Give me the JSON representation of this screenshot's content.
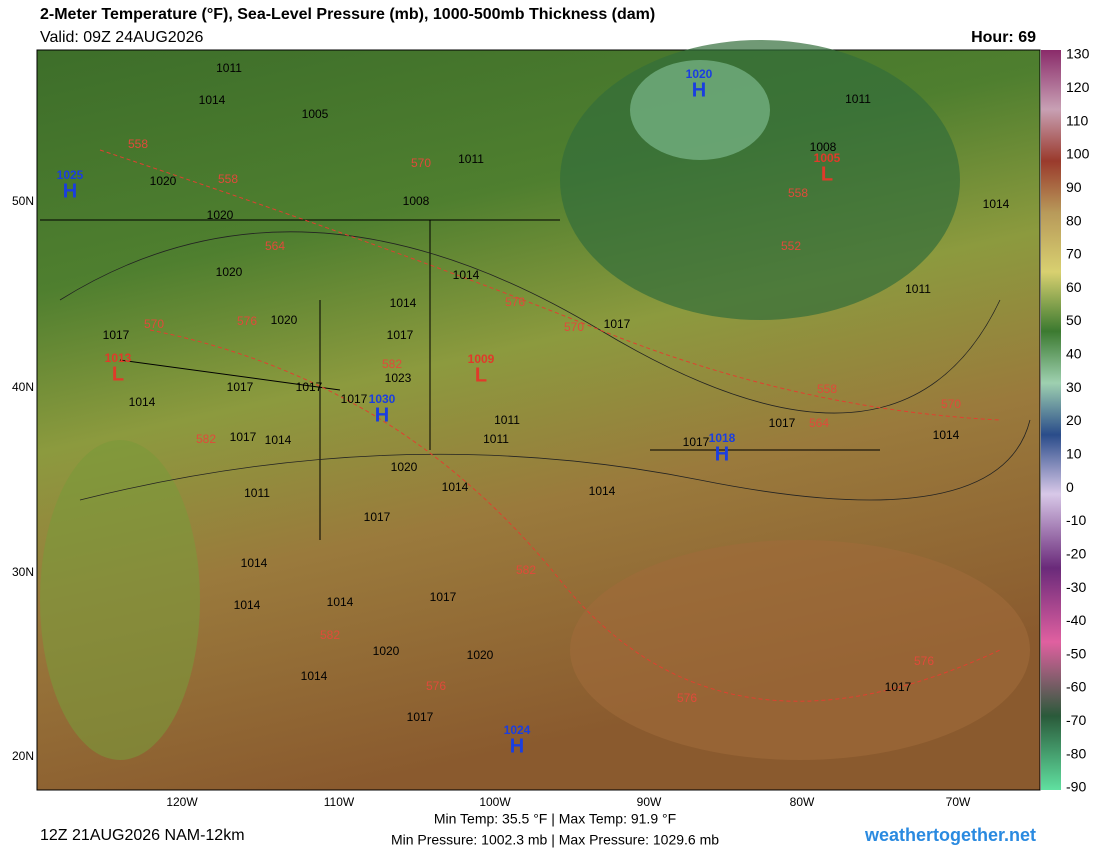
{
  "header": {
    "title": "2-Meter Temperature (°F), Sea-Level Pressure (mb), 1000-500mb Thickness (dam)",
    "valid": "Valid: 09Z 24AUG2026",
    "hour": "Hour: 69"
  },
  "colorbar": {
    "ticks": [
      130,
      120,
      110,
      100,
      90,
      80,
      70,
      60,
      50,
      40,
      30,
      20,
      10,
      0,
      -10,
      -20,
      -30,
      -40,
      -50,
      -60,
      -70,
      -80,
      -90
    ]
  },
  "lat_labels": [
    "50N",
    "40N",
    "30N",
    "20N"
  ],
  "lon_labels": [
    "120W",
    "110W",
    "100W",
    "90W",
    "80W",
    "70W"
  ],
  "isobar_labels": [
    "1011",
    "1014",
    "1005",
    "1011",
    "1008",
    "1020",
    "1020",
    "1020",
    "1014",
    "1014",
    "1020",
    "1017",
    "1017",
    "1017",
    "1023",
    "1017",
    "1017",
    "1017",
    "1014",
    "1011",
    "1011",
    "1017",
    "1014",
    "1020",
    "1014",
    "1014",
    "1011",
    "1017",
    "1014",
    "1014",
    "1014",
    "1017",
    "1020",
    "1020",
    "1014",
    "1017",
    "1017",
    "1014",
    "1017",
    "1017",
    "1011",
    "1008",
    "1014",
    "1011"
  ],
  "thickness_labels": [
    "558",
    "558",
    "564",
    "570",
    "576",
    "570",
    "576",
    "570",
    "582",
    "582",
    "582",
    "582",
    "576",
    "576",
    "576",
    "570",
    "564",
    "558",
    "552",
    "558"
  ],
  "centers": [
    {
      "letter": "H",
      "value": "1025"
    },
    {
      "letter": "L",
      "value": "1013"
    },
    {
      "letter": "H",
      "value": "1030"
    },
    {
      "letter": "L",
      "value": "1009"
    },
    {
      "letter": "H",
      "value": "1018"
    },
    {
      "letter": "H",
      "value": "1020"
    },
    {
      "letter": "L",
      "value": "1005"
    },
    {
      "letter": "H",
      "value": "1024"
    }
  ],
  "footer": {
    "run": "12Z 21AUG2026 NAM-12km",
    "temps": "Min Temp: 35.5 °F | Max Temp: 91.9 °F",
    "pressures": "Min Pressure: 1002.3 mb | Max Pressure: 1029.6 mb",
    "site": "weathertogether.net"
  }
}
